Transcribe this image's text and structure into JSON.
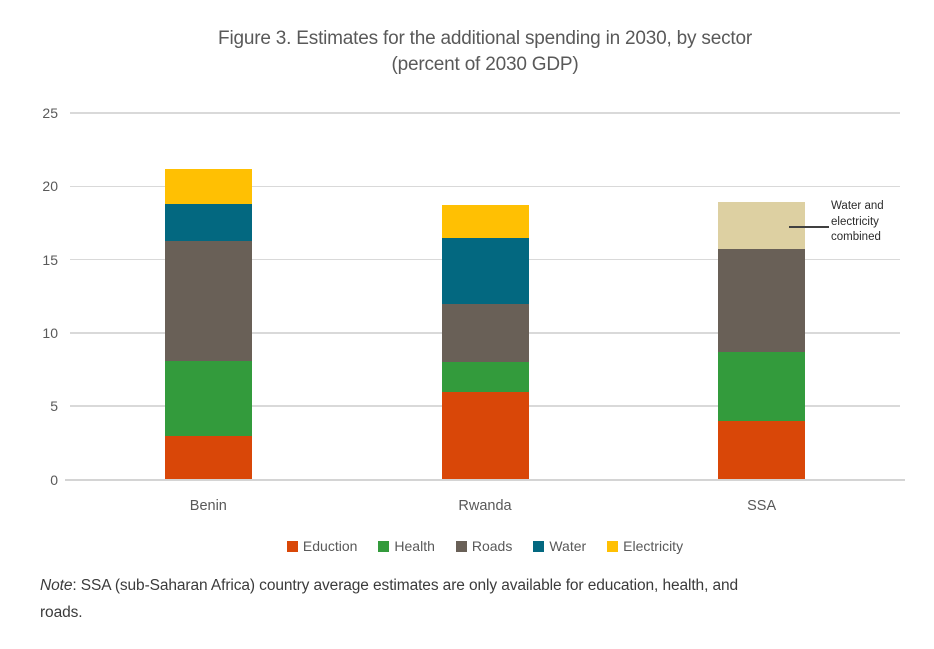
{
  "title": {
    "line1": "Figure 3. Estimates for the additional spending in 2030, by sector",
    "line2": "(percent of 2030 GDP)"
  },
  "chart_data": {
    "type": "bar",
    "stacked": true,
    "categories": [
      "Benin",
      "Rwanda",
      "SSA"
    ],
    "series": [
      {
        "name": "Eduction",
        "color": "#d94708",
        "values": [
          3.0,
          6.0,
          4.0
        ],
        "in_legend": true
      },
      {
        "name": "Health",
        "color": "#339b3c",
        "values": [
          5.1,
          2.0,
          4.7
        ],
        "in_legend": true
      },
      {
        "name": "Roads",
        "color": "#696057",
        "values": [
          8.2,
          4.0,
          7.0
        ],
        "in_legend": true
      },
      {
        "name": "Water",
        "color": "#036880",
        "values": [
          2.5,
          4.5,
          0
        ],
        "in_legend": true
      },
      {
        "name": "Electricity",
        "color": "#ffc003",
        "values": [
          2.4,
          2.2,
          0
        ],
        "in_legend": true
      },
      {
        "name": "Water and electricity combined",
        "color": "#ddd0a2",
        "values": [
          0,
          0,
          3.2
        ],
        "in_legend": false
      }
    ],
    "totals": [
      21.2,
      18.7,
      18.9
    ],
    "ylim": [
      0,
      25
    ],
    "yticks": [
      0,
      5,
      10,
      15,
      20,
      25
    ],
    "grid": true,
    "legend_position": "bottom",
    "xlabel": "",
    "ylabel": ""
  },
  "annotation": {
    "text": "Water and electricity combined",
    "target_category": "SSA",
    "target_segment": "Water and electricity combined"
  },
  "note": {
    "prefix": "Note",
    "body": ": SSA (sub-Saharan Africa) country average estimates are only available for education, health, and",
    "line2": "roads."
  },
  "colors": {
    "gridline": "#d9d9d9",
    "axis_text": "#595959",
    "title_text": "#595959",
    "note_text": "#3b3b3b"
  }
}
